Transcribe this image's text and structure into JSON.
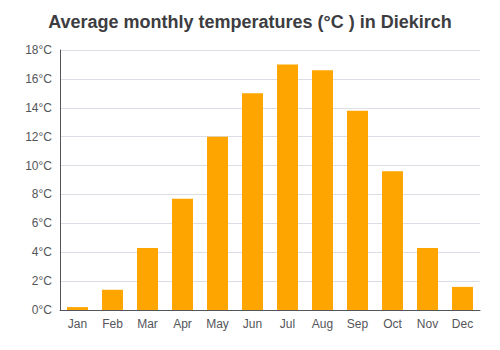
{
  "chart_data": {
    "type": "bar",
    "title": "Average monthly temperatures (°C ) in Diekirch",
    "categories": [
      "Jan",
      "Feb",
      "Mar",
      "Apr",
      "May",
      "Jun",
      "Jul",
      "Aug",
      "Sep",
      "Oct",
      "Nov",
      "Dec"
    ],
    "values": [
      0.2,
      1.4,
      4.3,
      7.7,
      12.0,
      15.0,
      17.0,
      16.6,
      13.8,
      9.6,
      4.3,
      1.6
    ],
    "color": "#FFA500",
    "ylim": [
      0,
      18
    ],
    "yticks": [
      {
        "value": 0,
        "label": "0°C"
      },
      {
        "value": 2,
        "label": "2°C"
      },
      {
        "value": 4,
        "label": "4°C"
      },
      {
        "value": 6,
        "label": "6°C"
      },
      {
        "value": 8,
        "label": "8°C"
      },
      {
        "value": 10,
        "label": "10°C"
      },
      {
        "value": 12,
        "label": "12°C"
      },
      {
        "value": 14,
        "label": "14°C"
      },
      {
        "value": 16,
        "label": "16°C"
      },
      {
        "value": 18,
        "label": "18°C"
      }
    ],
    "grid": true
  }
}
